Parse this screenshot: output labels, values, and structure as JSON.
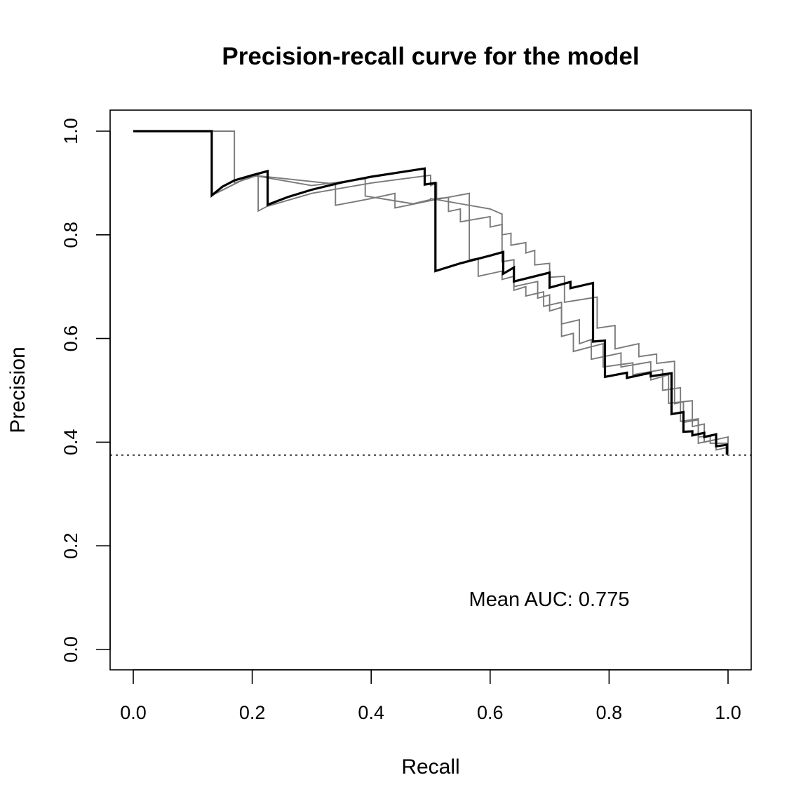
{
  "chart_data": {
    "type": "line",
    "title": "Precision-recall curve for the model",
    "xlabel": "Recall",
    "ylabel": "Precision",
    "xlim": [
      0.0,
      1.0
    ],
    "ylim": [
      0.0,
      1.0
    ],
    "xticks": [
      "0.0",
      "0.2",
      "0.4",
      "0.6",
      "0.8",
      "1.0"
    ],
    "yticks": [
      "0.0",
      "0.2",
      "0.4",
      "0.6",
      "0.8",
      "1.0"
    ],
    "grid": false,
    "baseline": 0.375,
    "annotation": "Mean AUC: 0.775",
    "mean_curve": [
      [
        0.0,
        1.0
      ],
      [
        0.132,
        1.0
      ],
      [
        0.132,
        0.876
      ],
      [
        0.15,
        0.893
      ],
      [
        0.17,
        0.905
      ],
      [
        0.2,
        0.915
      ],
      [
        0.226,
        0.923
      ],
      [
        0.226,
        0.858
      ],
      [
        0.26,
        0.873
      ],
      [
        0.3,
        0.887
      ],
      [
        0.35,
        0.901
      ],
      [
        0.4,
        0.912
      ],
      [
        0.45,
        0.921
      ],
      [
        0.49,
        0.928
      ],
      [
        0.49,
        0.897
      ],
      [
        0.508,
        0.9
      ],
      [
        0.508,
        0.73
      ],
      [
        0.55,
        0.745
      ],
      [
        0.6,
        0.76
      ],
      [
        0.622,
        0.767
      ],
      [
        0.622,
        0.725
      ],
      [
        0.64,
        0.737
      ],
      [
        0.64,
        0.71
      ],
      [
        0.7,
        0.727
      ],
      [
        0.7,
        0.698
      ],
      [
        0.735,
        0.709
      ],
      [
        0.735,
        0.697
      ],
      [
        0.773,
        0.707
      ],
      [
        0.773,
        0.594
      ],
      [
        0.793,
        0.596
      ],
      [
        0.793,
        0.526
      ],
      [
        0.83,
        0.534
      ],
      [
        0.83,
        0.524
      ],
      [
        0.87,
        0.534
      ],
      [
        0.87,
        0.527
      ],
      [
        0.905,
        0.533
      ],
      [
        0.905,
        0.454
      ],
      [
        0.925,
        0.458
      ],
      [
        0.925,
        0.42
      ],
      [
        0.94,
        0.421
      ],
      [
        0.94,
        0.413
      ],
      [
        0.96,
        0.418
      ],
      [
        0.96,
        0.41
      ],
      [
        0.98,
        0.415
      ],
      [
        0.98,
        0.392
      ],
      [
        0.998,
        0.395
      ],
      [
        0.998,
        0.378
      ],
      [
        1.0,
        0.378
      ]
    ],
    "fold_curves": [
      [
        [
          0.0,
          1.0
        ],
        [
          0.17,
          1.0
        ],
        [
          0.17,
          0.9
        ],
        [
          0.21,
          0.915
        ],
        [
          0.21,
          0.846
        ],
        [
          0.225,
          0.855
        ],
        [
          0.3,
          0.88
        ],
        [
          0.4,
          0.9
        ],
        [
          0.5,
          0.915
        ],
        [
          0.5,
          0.895
        ],
        [
          0.51,
          0.9
        ],
        [
          0.51,
          0.87
        ],
        [
          0.53,
          0.872
        ],
        [
          0.53,
          0.845
        ],
        [
          0.55,
          0.85
        ],
        [
          0.55,
          0.825
        ],
        [
          0.6,
          0.835
        ],
        [
          0.6,
          0.815
        ],
        [
          0.62,
          0.82
        ],
        [
          0.62,
          0.8
        ],
        [
          0.635,
          0.803
        ],
        [
          0.635,
          0.78
        ],
        [
          0.66,
          0.785
        ],
        [
          0.66,
          0.765
        ],
        [
          0.675,
          0.77
        ],
        [
          0.675,
          0.742
        ],
        [
          0.7,
          0.745
        ],
        [
          0.7,
          0.718
        ],
        [
          0.725,
          0.72
        ],
        [
          0.725,
          0.67
        ],
        [
          0.78,
          0.68
        ],
        [
          0.78,
          0.62
        ],
        [
          0.81,
          0.625
        ],
        [
          0.81,
          0.58
        ],
        [
          0.85,
          0.59
        ],
        [
          0.85,
          0.565
        ],
        [
          0.88,
          0.57
        ],
        [
          0.88,
          0.552
        ],
        [
          0.91,
          0.556
        ],
        [
          0.91,
          0.474
        ],
        [
          0.925,
          0.478
        ],
        [
          0.925,
          0.438
        ],
        [
          0.95,
          0.443
        ],
        [
          0.95,
          0.41
        ],
        [
          0.97,
          0.412
        ],
        [
          0.97,
          0.398
        ],
        [
          1.0,
          0.398
        ],
        [
          1.0,
          0.378
        ]
      ],
      [
        [
          0.0,
          1.0
        ],
        [
          0.132,
          1.0
        ],
        [
          0.132,
          0.876
        ],
        [
          0.2,
          0.915
        ],
        [
          0.34,
          0.898
        ],
        [
          0.34,
          0.857
        ],
        [
          0.4,
          0.87
        ],
        [
          0.44,
          0.88
        ],
        [
          0.44,
          0.852
        ],
        [
          0.5,
          0.866
        ],
        [
          0.565,
          0.88
        ],
        [
          0.565,
          0.752
        ],
        [
          0.58,
          0.755
        ],
        [
          0.58,
          0.72
        ],
        [
          0.62,
          0.73
        ],
        [
          0.62,
          0.714
        ],
        [
          0.64,
          0.72
        ],
        [
          0.64,
          0.693
        ],
        [
          0.66,
          0.7
        ],
        [
          0.66,
          0.682
        ],
        [
          0.69,
          0.69
        ],
        [
          0.69,
          0.662
        ],
        [
          0.72,
          0.67
        ],
        [
          0.72,
          0.628
        ],
        [
          0.75,
          0.636
        ],
        [
          0.75,
          0.59
        ],
        [
          0.77,
          0.598
        ],
        [
          0.77,
          0.56
        ],
        [
          0.82,
          0.572
        ],
        [
          0.82,
          0.545
        ],
        [
          0.87,
          0.555
        ],
        [
          0.87,
          0.52
        ],
        [
          0.9,
          0.53
        ],
        [
          0.9,
          0.475
        ],
        [
          0.94,
          0.48
        ],
        [
          0.94,
          0.43
        ],
        [
          0.96,
          0.435
        ],
        [
          0.96,
          0.4
        ],
        [
          1.0,
          0.41
        ],
        [
          1.0,
          0.378
        ]
      ],
      [
        [
          0.0,
          1.0
        ],
        [
          0.132,
          1.0
        ],
        [
          0.132,
          0.876
        ],
        [
          0.2,
          0.915
        ],
        [
          0.3,
          0.895
        ],
        [
          0.39,
          0.908
        ],
        [
          0.39,
          0.875
        ],
        [
          0.47,
          0.86
        ],
        [
          0.5,
          0.868
        ],
        [
          0.5,
          0.87
        ],
        [
          0.55,
          0.86
        ],
        [
          0.6,
          0.85
        ],
        [
          0.62,
          0.84
        ],
        [
          0.62,
          0.748
        ],
        [
          0.64,
          0.752
        ],
        [
          0.64,
          0.7
        ],
        [
          0.68,
          0.71
        ],
        [
          0.68,
          0.678
        ],
        [
          0.7,
          0.684
        ],
        [
          0.7,
          0.653
        ],
        [
          0.72,
          0.66
        ],
        [
          0.72,
          0.604
        ],
        [
          0.74,
          0.61
        ],
        [
          0.74,
          0.575
        ],
        [
          0.79,
          0.59
        ],
        [
          0.79,
          0.545
        ],
        [
          0.84,
          0.553
        ],
        [
          0.84,
          0.53
        ],
        [
          0.89,
          0.54
        ],
        [
          0.89,
          0.5
        ],
        [
          0.92,
          0.505
        ],
        [
          0.92,
          0.44
        ],
        [
          0.95,
          0.445
        ],
        [
          0.95,
          0.398
        ],
        [
          0.98,
          0.405
        ],
        [
          0.98,
          0.385
        ],
        [
          1.0,
          0.39
        ],
        [
          1.0,
          0.378
        ]
      ]
    ]
  }
}
